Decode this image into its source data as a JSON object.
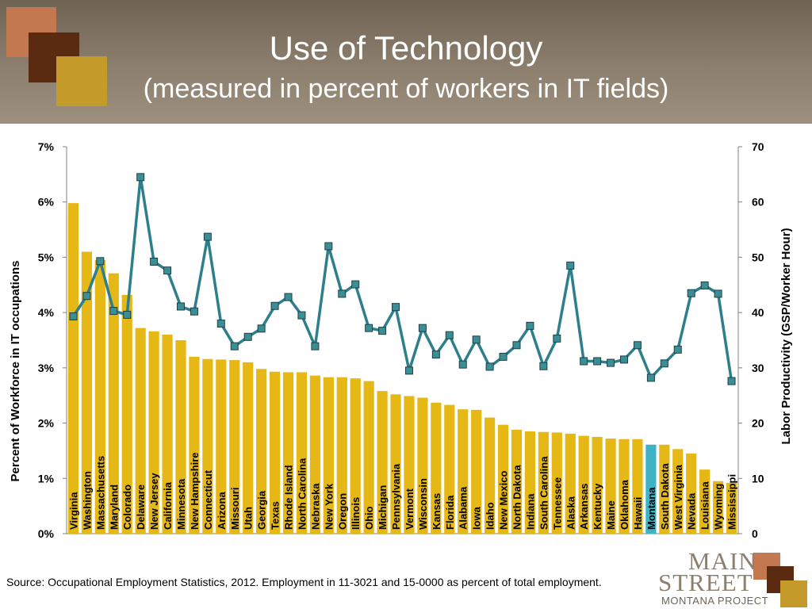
{
  "header": {
    "title": "Use of Technology",
    "subtitle": "(measured in percent of workers in IT fields)"
  },
  "source_note": "Source:  Occupational Employment Statistics, 2012.  Employment in 11-3021 and 15-0000 as percent of total employment.",
  "logo": {
    "line1": "MAIN",
    "line2": "STREET",
    "line3": "MONTANA PROJECT"
  },
  "colors": {
    "bar": "#e6b816",
    "bar_highlight": "#3fb2c6",
    "line": "#2e7f8c",
    "marker": "#3a8f96"
  },
  "chart_data": {
    "type": "bar",
    "ylabel_left": "Percent of Workforce in IT occupations",
    "ylabel_right": "Labor Productivity (GSP/Worker Hour)",
    "left_axis": {
      "min": 0,
      "max": 7,
      "ticks": [
        "0%",
        "1%",
        "2%",
        "3%",
        "4%",
        "5%",
        "6%",
        "7%"
      ]
    },
    "right_axis": {
      "min": 0,
      "max": 70,
      "ticks": [
        "0",
        "10",
        "20",
        "30",
        "40",
        "50",
        "60",
        "70"
      ]
    },
    "grid": false,
    "highlight": "Montana",
    "categories": [
      "Virginia",
      "Washington",
      "Massachusetts",
      "Maryland",
      "Colorado",
      "Delaware",
      "New Jersey",
      "California",
      "Minnesota",
      "New Hampshire",
      "Connecticut",
      "Arizona",
      "Missouri",
      "Utah",
      "Georgia",
      "Texas",
      "Rhode Island",
      "North Carolina",
      "Nebraska",
      "New York",
      "Oregon",
      "Illinois",
      "Ohio",
      "Michigan",
      "Pennsylvania",
      "Vermont",
      "Wisconsin",
      "Kansas",
      "Florida",
      "Alabama",
      "Iowa",
      "Idaho",
      "New Mexico",
      "North Dakota",
      "Indiana",
      "South Carolina",
      "Tennessee",
      "Alaska",
      "Arkansas",
      "Kentucky",
      "Maine",
      "Oklahoma",
      "Hawaii",
      "Montana",
      "South Dakota",
      "West Virginia",
      "Nevada",
      "Louisiana",
      "Wyoming",
      "Mississippi"
    ],
    "series": [
      {
        "axis": "left",
        "kind": "bar",
        "values": [
          5.98,
          5.1,
          4.95,
          4.71,
          4.32,
          3.72,
          3.66,
          3.6,
          3.5,
          3.2,
          3.16,
          3.15,
          3.14,
          3.1,
          2.98,
          2.93,
          2.92,
          2.92,
          2.86,
          2.83,
          2.83,
          2.81,
          2.76,
          2.58,
          2.52,
          2.49,
          2.46,
          2.37,
          2.33,
          2.25,
          2.24,
          2.1,
          1.97,
          1.88,
          1.85,
          1.84,
          1.83,
          1.81,
          1.77,
          1.75,
          1.72,
          1.71,
          1.71,
          1.61,
          1.61,
          1.53,
          1.45,
          1.16,
          0.95,
          0.92
        ]
      },
      {
        "axis": "right",
        "kind": "line",
        "values": [
          39.3,
          43.0,
          49.3,
          40.3,
          39.6,
          64.5,
          49.2,
          47.6,
          41.1,
          40.2,
          53.7,
          38.0,
          33.9,
          35.6,
          37.1,
          41.2,
          42.8,
          39.5,
          33.9,
          52.0,
          43.4,
          45.1,
          37.2,
          36.7,
          41.0,
          29.5,
          37.2,
          32.4,
          35.9,
          30.6,
          35.1,
          30.2,
          32.0,
          34.1,
          37.6,
          30.3,
          35.3,
          48.5,
          31.2,
          31.2,
          30.9,
          31.5,
          34.1,
          28.2,
          30.8,
          33.3,
          43.5,
          44.9,
          43.4,
          27.6
        ]
      }
    ]
  }
}
